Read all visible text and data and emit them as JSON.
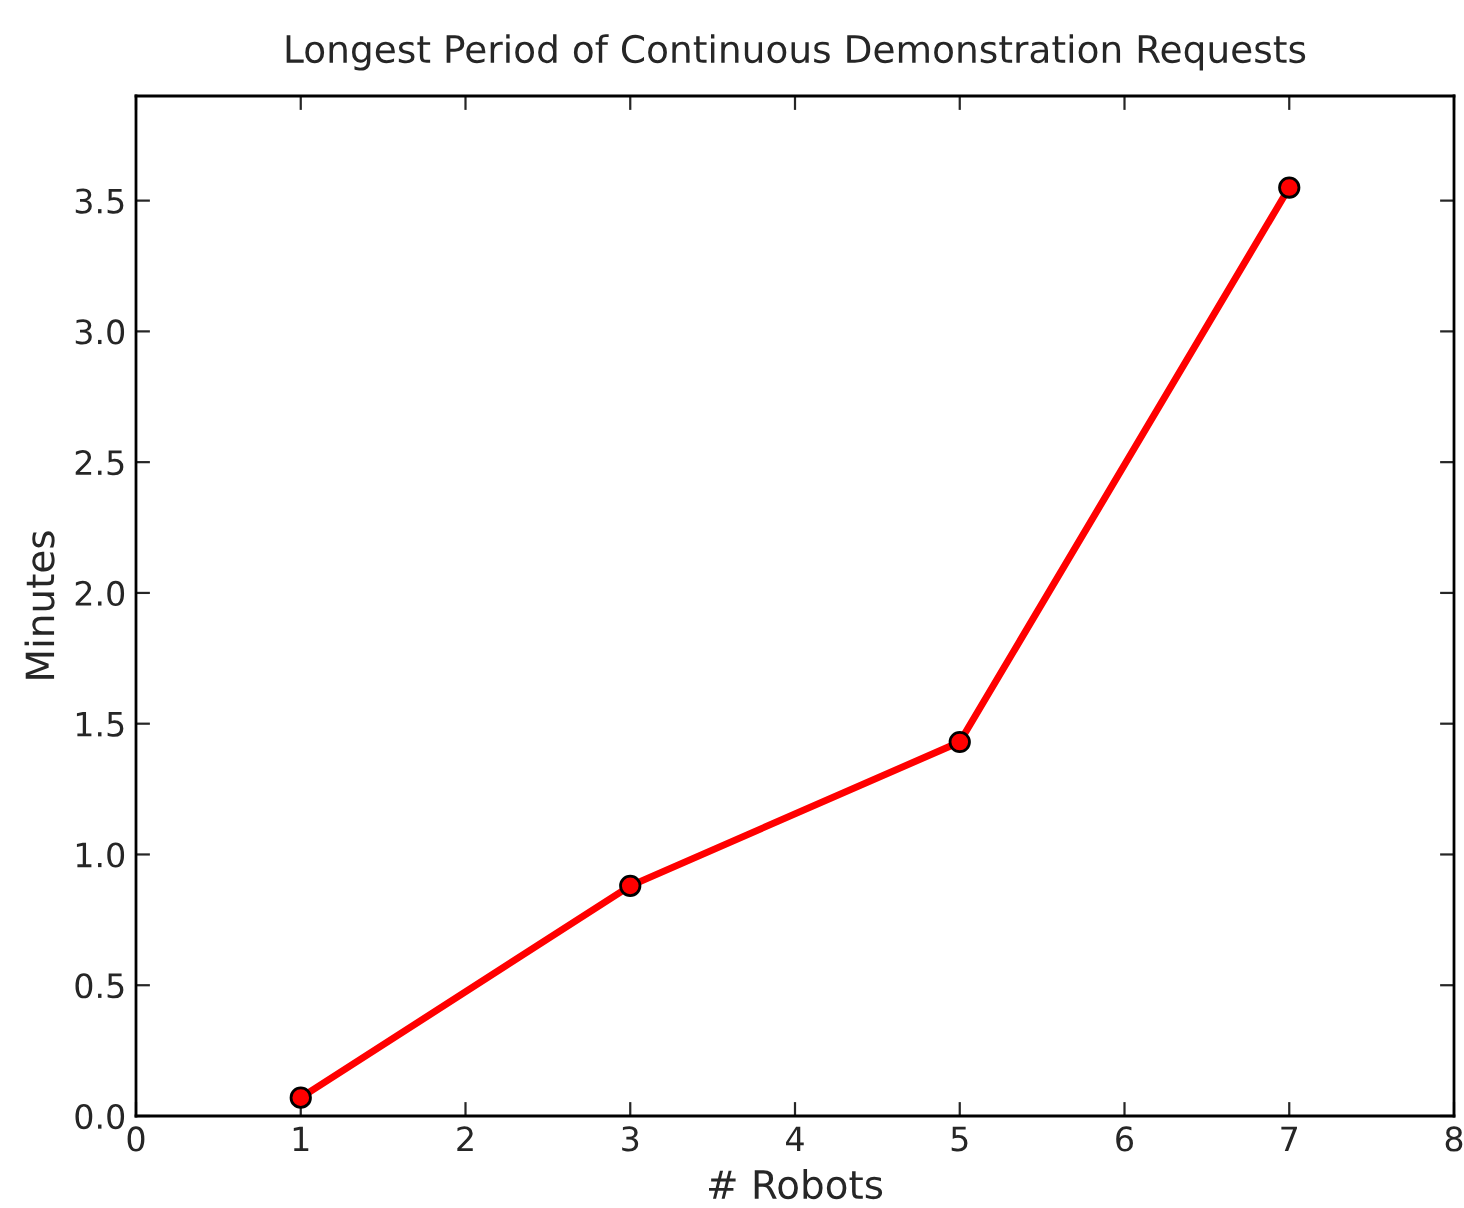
{
  "chart_data": {
    "type": "line",
    "title": "Longest Period of Continuous Demonstration Requests",
    "xlabel": "# Robots",
    "ylabel": "Minutes",
    "x": [
      1,
      3,
      5,
      7
    ],
    "series": [
      {
        "color": "#ff0000",
        "values": [
          0.07,
          0.88,
          1.43,
          3.55
        ]
      }
    ],
    "xlim": [
      0,
      8
    ],
    "xticks": [
      0,
      1,
      2,
      3,
      4,
      5,
      6,
      7,
      8
    ],
    "ylim": [
      0,
      3.9
    ],
    "yticks": [
      {
        "value": 0,
        "label": "0.0"
      },
      0.5,
      {
        "value": 1,
        "label": "1.0"
      },
      1.5,
      {
        "value": 2,
        "label": "2.0"
      },
      2.5,
      {
        "value": 3,
        "label": "3.0"
      },
      3.5
    ],
    "marker": "circle",
    "line_style": "solid",
    "grid": false
  }
}
